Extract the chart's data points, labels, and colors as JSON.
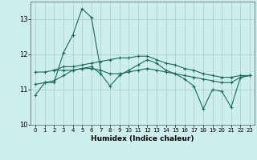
{
  "xlabel": "Humidex (Indice chaleur)",
  "background_color": "#cdeeed",
  "grid_color": "#aed8d5",
  "line_color": "#1a6b5a",
  "xlim": [
    -0.5,
    23.5
  ],
  "ylim": [
    10.0,
    13.5
  ],
  "yticks": [
    10,
    11,
    12,
    13
  ],
  "xtick_labels": [
    "0",
    "1",
    "2",
    "3",
    "4",
    "5",
    "6",
    "7",
    "8",
    "9",
    "10",
    "11",
    "12",
    "13",
    "14",
    "15",
    "16",
    "17",
    "18",
    "19",
    "20",
    "21",
    "22",
    "23"
  ],
  "lines": [
    {
      "x": [
        0,
        1,
        2,
        3,
        4,
        5,
        6,
        7
      ],
      "y": [
        10.85,
        11.2,
        11.2,
        12.05,
        12.55,
        13.3,
        13.05,
        11.55
      ]
    },
    {
      "x": [
        0,
        1,
        2,
        3,
        4,
        5,
        6,
        7,
        8,
        9,
        10,
        11,
        12,
        13,
        14,
        15,
        16,
        17,
        18,
        19,
        20,
        21,
        22,
        23
      ],
      "y": [
        11.5,
        11.5,
        11.55,
        11.65,
        11.65,
        11.7,
        11.75,
        11.8,
        11.85,
        11.9,
        11.9,
        11.95,
        11.95,
        11.85,
        11.75,
        11.7,
        11.6,
        11.55,
        11.45,
        11.4,
        11.35,
        11.35,
        11.4,
        11.4
      ]
    },
    {
      "x": [
        0,
        1,
        2,
        3,
        4,
        5,
        6,
        7,
        8,
        9,
        10,
        11,
        12,
        13,
        14,
        15,
        16,
        17,
        18,
        19,
        20,
        21,
        22,
        23
      ],
      "y": [
        11.15,
        11.2,
        11.25,
        11.4,
        11.55,
        11.6,
        11.65,
        11.45,
        11.1,
        11.4,
        11.55,
        11.7,
        11.85,
        11.75,
        11.55,
        11.45,
        11.3,
        11.1,
        10.45,
        11.0,
        10.95,
        10.5,
        11.35,
        11.4
      ]
    },
    {
      "x": [
        2,
        3,
        4,
        5,
        6,
        7,
        8,
        9,
        10,
        11,
        12,
        13,
        14,
        15,
        16,
        17,
        18,
        19,
        20,
        21,
        22,
        23
      ],
      "y": [
        11.55,
        11.55,
        11.55,
        11.6,
        11.6,
        11.55,
        11.45,
        11.45,
        11.5,
        11.55,
        11.6,
        11.55,
        11.5,
        11.45,
        11.4,
        11.35,
        11.3,
        11.25,
        11.2,
        11.2,
        11.35,
        11.4
      ]
    }
  ]
}
